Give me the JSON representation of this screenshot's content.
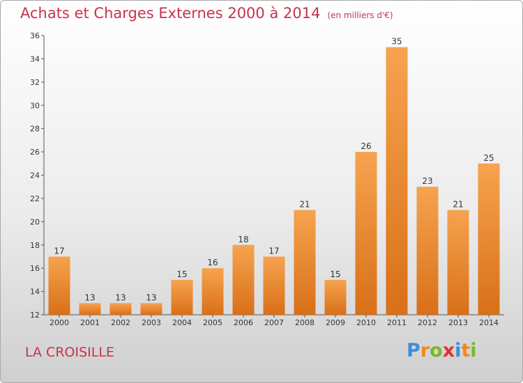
{
  "header": {
    "title": "Achats et Charges Externes 2000 à 2014",
    "unit": "(en milliers d'€)"
  },
  "footer": {
    "place": "LA CROISILLE",
    "logo": {
      "letters": [
        "P",
        "r",
        "o",
        "x",
        "i",
        "t",
        "i"
      ],
      "colors": [
        "#3b8fd6",
        "#f08a1c",
        "#76b82a",
        "#e0322d",
        "#3b8fd6",
        "#f08a1c",
        "#76b82a"
      ]
    }
  },
  "colors": {
    "title": "#c7324f",
    "bar_top": "#f7a34f",
    "bar_bottom": "#d87018"
  },
  "chart_data": {
    "type": "bar",
    "title": "Achats et Charges Externes 2000 à 2014",
    "subtitle": "(en milliers d'€)",
    "xlabel": "",
    "ylabel": "",
    "categories": [
      "2000",
      "2001",
      "2002",
      "2003",
      "2004",
      "2005",
      "2006",
      "2007",
      "2008",
      "2009",
      "2010",
      "2011",
      "2012",
      "2013",
      "2014"
    ],
    "values": [
      17,
      13,
      13,
      13,
      15,
      16,
      18,
      17,
      21,
      15,
      26,
      35,
      23,
      21,
      25
    ],
    "ylim": [
      12,
      36
    ],
    "yticks": [
      12,
      14,
      16,
      18,
      20,
      22,
      24,
      26,
      28,
      30,
      32,
      34,
      36
    ],
    "grid": false,
    "data_labels": true
  }
}
